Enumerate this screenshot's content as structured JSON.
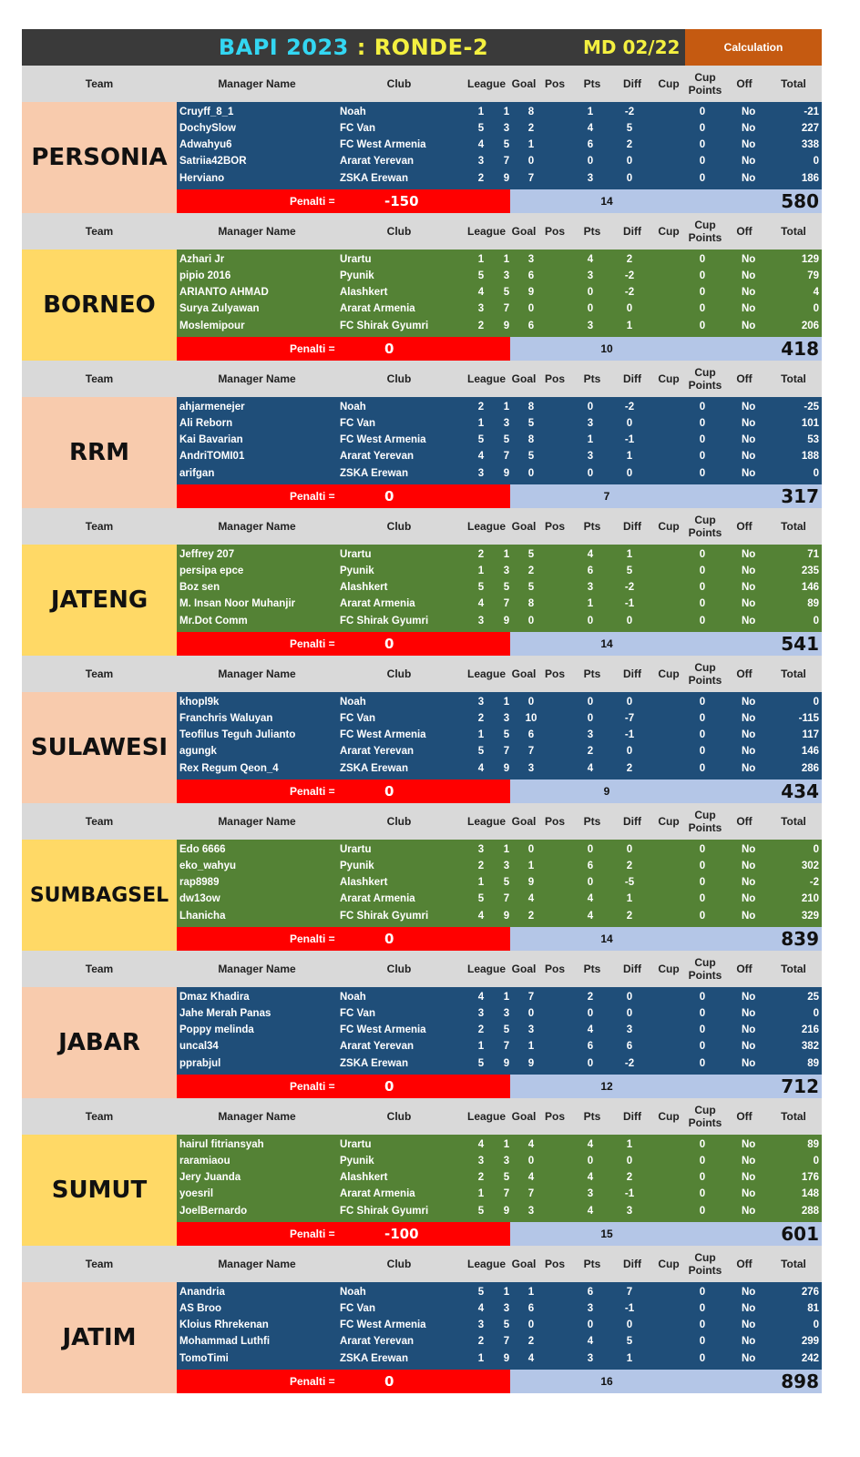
{
  "title": {
    "part1": "BAPI 2023",
    "sep": " : ",
    "part2": "RONDE-2",
    "md": "MD 02/22",
    "calc": "Calculation"
  },
  "headers": {
    "team": "Team",
    "manager": "Manager Name",
    "club": "Club",
    "league": "League",
    "goal": "Goal",
    "pos": "Pos",
    "pts": "Pts",
    "diff": "Diff",
    "cup": "Cup",
    "cup_points_1": "Cup",
    "cup_points_2": "Points",
    "off": "Off",
    "total": "Total"
  },
  "penalti_label": "Penalti =",
  "colors": {
    "blue_rows": "#1f4e79",
    "green_rows": "#548235",
    "peach": "#f8cbad",
    "gold": "#ffd966",
    "penalty": "#ff0000",
    "summary": "#b4c6e7"
  },
  "teams": [
    {
      "name": "PERSONIA",
      "bg": "#f8cbad",
      "rows_bg": "#1f4e79",
      "penalti": "-150",
      "pts_sum": "14",
      "total": "580",
      "rows": [
        {
          "manager": "Cruyff_8_1",
          "club": "Noah",
          "league": "1",
          "goal": "1",
          "pos": "8",
          "pts": "1",
          "diff": "-2",
          "cup": "",
          "cup_points": "0",
          "off": "No",
          "total": "-21"
        },
        {
          "manager": "DochySlow",
          "club": "FC Van",
          "league": "5",
          "goal": "3",
          "pos": "2",
          "pts": "4",
          "diff": "5",
          "cup": "",
          "cup_points": "0",
          "off": "No",
          "total": "227"
        },
        {
          "manager": "Adwahyu6",
          "club": "FC West Armenia",
          "league": "4",
          "goal": "5",
          "pos": "1",
          "pts": "6",
          "diff": "2",
          "cup": "",
          "cup_points": "0",
          "off": "No",
          "total": "338"
        },
        {
          "manager": "Satriia42BOR",
          "club": "Ararat Yerevan",
          "league": "3",
          "goal": "7",
          "pos": "0",
          "pts": "0",
          "diff": "0",
          "cup": "",
          "cup_points": "0",
          "off": "No",
          "total": "0"
        },
        {
          "manager": "Herviano",
          "club": "ZSKA Erewan",
          "league": "2",
          "goal": "9",
          "pos": "7",
          "pts": "3",
          "diff": "0",
          "cup": "",
          "cup_points": "0",
          "off": "No",
          "total": "186"
        }
      ]
    },
    {
      "name": "BORNEO",
      "bg": "#ffd966",
      "rows_bg": "#548235",
      "penalti": "0",
      "pts_sum": "10",
      "total": "418",
      "rows": [
        {
          "manager": "Azhari Jr",
          "club": "Urartu",
          "league": "1",
          "goal": "1",
          "pos": "3",
          "pts": "4",
          "diff": "2",
          "cup": "",
          "cup_points": "0",
          "off": "No",
          "total": "129"
        },
        {
          "manager": "pipio 2016",
          "club": "Pyunik",
          "league": "5",
          "goal": "3",
          "pos": "6",
          "pts": "3",
          "diff": "-2",
          "cup": "",
          "cup_points": "0",
          "off": "No",
          "total": "79"
        },
        {
          "manager": "ARIANTO AHMAD",
          "club": "Alashkert",
          "league": "4",
          "goal": "5",
          "pos": "9",
          "pts": "0",
          "diff": "-2",
          "cup": "",
          "cup_points": "0",
          "off": "No",
          "total": "4"
        },
        {
          "manager": "Surya Zulyawan",
          "club": "Ararat Armenia",
          "league": "3",
          "goal": "7",
          "pos": "0",
          "pts": "0",
          "diff": "0",
          "cup": "",
          "cup_points": "0",
          "off": "No",
          "total": "0"
        },
        {
          "manager": "Moslemipour",
          "club": "FC Shirak Gyumri",
          "league": "2",
          "goal": "9",
          "pos": "6",
          "pts": "3",
          "diff": "1",
          "cup": "",
          "cup_points": "0",
          "off": "No",
          "total": "206"
        }
      ]
    },
    {
      "name": "RRM",
      "bg": "#f8cbad",
      "rows_bg": "#1f4e79",
      "penalti": "0",
      "pts_sum": "7",
      "total": "317",
      "rows": [
        {
          "manager": "ahjarmenejer",
          "club": "Noah",
          "league": "2",
          "goal": "1",
          "pos": "8",
          "pts": "0",
          "diff": "-2",
          "cup": "",
          "cup_points": "0",
          "off": "No",
          "total": "-25"
        },
        {
          "manager": "Ali Reborn",
          "club": "FC Van",
          "league": "1",
          "goal": "3",
          "pos": "5",
          "pts": "3",
          "diff": "0",
          "cup": "",
          "cup_points": "0",
          "off": "No",
          "total": "101"
        },
        {
          "manager": "Kai Bavarian",
          "club": "FC West Armenia",
          "league": "5",
          "goal": "5",
          "pos": "8",
          "pts": "1",
          "diff": "-1",
          "cup": "",
          "cup_points": "0",
          "off": "No",
          "total": "53"
        },
        {
          "manager": "AndriTOMI01",
          "club": "Ararat Yerevan",
          "league": "4",
          "goal": "7",
          "pos": "5",
          "pts": "3",
          "diff": "1",
          "cup": "",
          "cup_points": "0",
          "off": "No",
          "total": "188"
        },
        {
          "manager": "arifgan",
          "club": "ZSKA Erewan",
          "league": "3",
          "goal": "9",
          "pos": "0",
          "pts": "0",
          "diff": "0",
          "cup": "",
          "cup_points": "0",
          "off": "No",
          "total": "0"
        }
      ]
    },
    {
      "name": "JATENG",
      "bg": "#ffd966",
      "rows_bg": "#548235",
      "penalti": "0",
      "pts_sum": "14",
      "total": "541",
      "rows": [
        {
          "manager": "Jeffrey 207",
          "club": "Urartu",
          "league": "2",
          "goal": "1",
          "pos": "5",
          "pts": "4",
          "diff": "1",
          "cup": "",
          "cup_points": "0",
          "off": "No",
          "total": "71"
        },
        {
          "manager": "persipa epce",
          "club": "Pyunik",
          "league": "1",
          "goal": "3",
          "pos": "2",
          "pts": "6",
          "diff": "5",
          "cup": "",
          "cup_points": "0",
          "off": "No",
          "total": "235"
        },
        {
          "manager": "Boz sen",
          "club": "Alashkert",
          "league": "5",
          "goal": "5",
          "pos": "5",
          "pts": "3",
          "diff": "-2",
          "cup": "",
          "cup_points": "0",
          "off": "No",
          "total": "146"
        },
        {
          "manager": "M. Insan Noor Muhanjir",
          "club": "Ararat Armenia",
          "league": "4",
          "goal": "7",
          "pos": "8",
          "pts": "1",
          "diff": "-1",
          "cup": "",
          "cup_points": "0",
          "off": "No",
          "total": "89"
        },
        {
          "manager": "Mr.Dot Comm",
          "club": "FC Shirak Gyumri",
          "league": "3",
          "goal": "9",
          "pos": "0",
          "pts": "0",
          "diff": "0",
          "cup": "",
          "cup_points": "0",
          "off": "No",
          "total": "0"
        }
      ]
    },
    {
      "name": "SULAWESI",
      "bg": "#f8cbad",
      "rows_bg": "#1f4e79",
      "penalti": "0",
      "pts_sum": "9",
      "total": "434",
      "rows": [
        {
          "manager": "khopl9k",
          "club": "Noah",
          "league": "3",
          "goal": "1",
          "pos": "0",
          "pts": "0",
          "diff": "0",
          "cup": "",
          "cup_points": "0",
          "off": "No",
          "total": "0"
        },
        {
          "manager": "Franchris Waluyan",
          "club": "FC Van",
          "league": "2",
          "goal": "3",
          "pos": "10",
          "pts": "0",
          "diff": "-7",
          "cup": "",
          "cup_points": "0",
          "off": "No",
          "total": "-115"
        },
        {
          "manager": "Teofilus Teguh Julianto",
          "club": "FC West Armenia",
          "league": "1",
          "goal": "5",
          "pos": "6",
          "pts": "3",
          "diff": "-1",
          "cup": "",
          "cup_points": "0",
          "off": "No",
          "total": "117"
        },
        {
          "manager": "agungk",
          "club": "Ararat Yerevan",
          "league": "5",
          "goal": "7",
          "pos": "7",
          "pts": "2",
          "diff": "0",
          "cup": "",
          "cup_points": "0",
          "off": "No",
          "total": "146"
        },
        {
          "manager": "Rex Regum Qeon_4",
          "club": "ZSKA Erewan",
          "league": "4",
          "goal": "9",
          "pos": "3",
          "pts": "4",
          "diff": "2",
          "cup": "",
          "cup_points": "0",
          "off": "No",
          "total": "286"
        }
      ]
    },
    {
      "name": "SUMBAGSEL",
      "bg": "#ffd966",
      "rows_bg": "#548235",
      "penalti": "0",
      "pts_sum": "14",
      "total": "839",
      "rows": [
        {
          "manager": "Edo 6666",
          "club": "Urartu",
          "league": "3",
          "goal": "1",
          "pos": "0",
          "pts": "0",
          "diff": "0",
          "cup": "",
          "cup_points": "0",
          "off": "No",
          "total": "0"
        },
        {
          "manager": "eko_wahyu",
          "club": "Pyunik",
          "league": "2",
          "goal": "3",
          "pos": "1",
          "pts": "6",
          "diff": "2",
          "cup": "",
          "cup_points": "0",
          "off": "No",
          "total": "302"
        },
        {
          "manager": "rap8989",
          "club": "Alashkert",
          "league": "1",
          "goal": "5",
          "pos": "9",
          "pts": "0",
          "diff": "-5",
          "cup": "",
          "cup_points": "0",
          "off": "No",
          "total": "-2"
        },
        {
          "manager": "dw13ow",
          "club": "Ararat Armenia",
          "league": "5",
          "goal": "7",
          "pos": "4",
          "pts": "4",
          "diff": "1",
          "cup": "",
          "cup_points": "0",
          "off": "No",
          "total": "210"
        },
        {
          "manager": "Lhanicha",
          "club": "FC Shirak Gyumri",
          "league": "4",
          "goal": "9",
          "pos": "2",
          "pts": "4",
          "diff": "2",
          "cup": "",
          "cup_points": "0",
          "off": "No",
          "total": "329"
        }
      ]
    },
    {
      "name": "JABAR",
      "bg": "#f8cbad",
      "rows_bg": "#1f4e79",
      "penalti": "0",
      "pts_sum": "12",
      "total": "712",
      "rows": [
        {
          "manager": "Dmaz Khadira",
          "club": "Noah",
          "league": "4",
          "goal": "1",
          "pos": "7",
          "pts": "2",
          "diff": "0",
          "cup": "",
          "cup_points": "0",
          "off": "No",
          "total": "25"
        },
        {
          "manager": "Jahe Merah Panas",
          "club": "FC Van",
          "league": "3",
          "goal": "3",
          "pos": "0",
          "pts": "0",
          "diff": "0",
          "cup": "",
          "cup_points": "0",
          "off": "No",
          "total": "0"
        },
        {
          "manager": "Poppy melinda",
          "club": "FC West Armenia",
          "league": "2",
          "goal": "5",
          "pos": "3",
          "pts": "4",
          "diff": "3",
          "cup": "",
          "cup_points": "0",
          "off": "No",
          "total": "216"
        },
        {
          "manager": "uncal34",
          "club": "Ararat Yerevan",
          "league": "1",
          "goal": "7",
          "pos": "1",
          "pts": "6",
          "diff": "6",
          "cup": "",
          "cup_points": "0",
          "off": "No",
          "total": "382"
        },
        {
          "manager": "pprabjul",
          "club": "ZSKA Erewan",
          "league": "5",
          "goal": "9",
          "pos": "9",
          "pts": "0",
          "diff": "-2",
          "cup": "",
          "cup_points": "0",
          "off": "No",
          "total": "89"
        }
      ]
    },
    {
      "name": "SUMUT",
      "bg": "#ffd966",
      "rows_bg": "#548235",
      "penalti": "-100",
      "pts_sum": "15",
      "total": "601",
      "rows": [
        {
          "manager": "hairul fitriansyah",
          "club": "Urartu",
          "league": "4",
          "goal": "1",
          "pos": "4",
          "pts": "4",
          "diff": "1",
          "cup": "",
          "cup_points": "0",
          "off": "No",
          "total": "89"
        },
        {
          "manager": "raramiaou",
          "club": "Pyunik",
          "league": "3",
          "goal": "3",
          "pos": "0",
          "pts": "0",
          "diff": "0",
          "cup": "",
          "cup_points": "0",
          "off": "No",
          "total": "0"
        },
        {
          "manager": "Jery Juanda",
          "club": "Alashkert",
          "league": "2",
          "goal": "5",
          "pos": "4",
          "pts": "4",
          "diff": "2",
          "cup": "",
          "cup_points": "0",
          "off": "No",
          "total": "176"
        },
        {
          "manager": "yoesril",
          "club": "Ararat Armenia",
          "league": "1",
          "goal": "7",
          "pos": "7",
          "pts": "3",
          "diff": "-1",
          "cup": "",
          "cup_points": "0",
          "off": "No",
          "total": "148"
        },
        {
          "manager": "JoelBernardo",
          "club": "FC Shirak Gyumri",
          "league": "5",
          "goal": "9",
          "pos": "3",
          "pts": "4",
          "diff": "3",
          "cup": "",
          "cup_points": "0",
          "off": "No",
          "total": "288"
        }
      ]
    },
    {
      "name": "JATIM",
      "bg": "#f8cbad",
      "rows_bg": "#1f4e79",
      "penalti": "0",
      "pts_sum": "16",
      "total": "898",
      "rows": [
        {
          "manager": "Anandria",
          "club": "Noah",
          "league": "5",
          "goal": "1",
          "pos": "1",
          "pts": "6",
          "diff": "7",
          "cup": "",
          "cup_points": "0",
          "off": "No",
          "total": "276"
        },
        {
          "manager": "AS Broo",
          "club": "FC Van",
          "league": "4",
          "goal": "3",
          "pos": "6",
          "pts": "3",
          "diff": "-1",
          "cup": "",
          "cup_points": "0",
          "off": "No",
          "total": "81"
        },
        {
          "manager": "Kloius Rhrekenan",
          "club": "FC West Armenia",
          "league": "3",
          "goal": "5",
          "pos": "0",
          "pts": "0",
          "diff": "0",
          "cup": "",
          "cup_points": "0",
          "off": "No",
          "total": "0"
        },
        {
          "manager": "Mohammad Luthfi",
          "club": "Ararat Yerevan",
          "league": "2",
          "goal": "7",
          "pos": "2",
          "pts": "4",
          "diff": "5",
          "cup": "",
          "cup_points": "0",
          "off": "No",
          "total": "299"
        },
        {
          "manager": "TomoTimi",
          "club": "ZSKA Erewan",
          "league": "1",
          "goal": "9",
          "pos": "4",
          "pts": "3",
          "diff": "1",
          "cup": "",
          "cup_points": "0",
          "off": "No",
          "total": "242"
        }
      ]
    }
  ]
}
